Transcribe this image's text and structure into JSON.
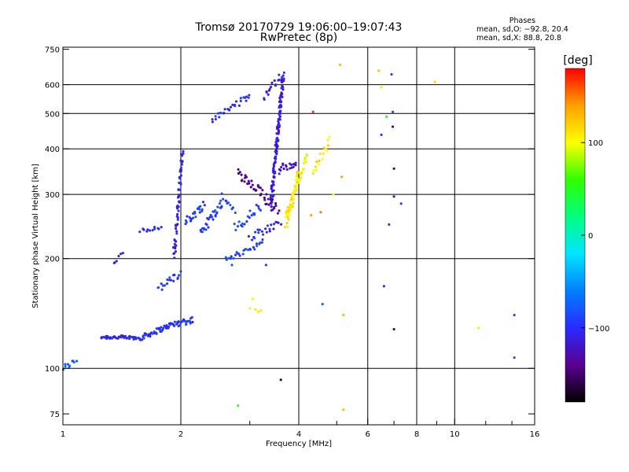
{
  "header": {
    "title_line1": "Tromsø 20170729 19:06:00–19:07:43",
    "title_line2": "RwPretec (8p)"
  },
  "phase_box": {
    "heading": "Phases",
    "line_o": "mean, sd,O: −92.8, 20.4",
    "line_x": "mean, sd,X:  88.8, 20.8"
  },
  "colorbar": {
    "unit_label": "[deg]",
    "ticks": [
      {
        "value": 100,
        "label": "100"
      },
      {
        "value": 0,
        "label": "0"
      },
      {
        "value": -100,
        "label": "−100"
      }
    ],
    "range": [
      -180,
      180
    ],
    "colormap": [
      "#000000",
      "#5a0090",
      "#2a2aff",
      "#0080ff",
      "#00e5ff",
      "#00ff80",
      "#30ff00",
      "#ffff00",
      "#ffa000",
      "#ff0000"
    ]
  },
  "chart_data": {
    "type": "scatter",
    "title": "Tromsø 20170729 19:06:00–19:07:43",
    "subtitle": "RwPretec (8p)",
    "xlabel": "Frequency [MHz]",
    "ylabel": "Stationary phase Virtual Height [km]",
    "x_scale": "log",
    "y_scale": "log",
    "xlim": [
      1,
      16
    ],
    "ylim": [
      70,
      760
    ],
    "x_ticks": [
      {
        "value": 1,
        "label": "1"
      },
      {
        "value": 2,
        "label": "2"
      },
      {
        "value": 4,
        "label": "4"
      },
      {
        "value": 6,
        "label": "6"
      },
      {
        "value": 8,
        "label": "8"
      },
      {
        "value": 10,
        "label": "10"
      },
      {
        "value": 16,
        "label": "16"
      }
    ],
    "x_minor_ticks": [
      3,
      5,
      7,
      9,
      12,
      14
    ],
    "y_ticks": [
      {
        "value": 75,
        "label": "75"
      },
      {
        "value": 100,
        "label": "100"
      },
      {
        "value": 200,
        "label": "200"
      },
      {
        "value": 300,
        "label": "300"
      },
      {
        "value": 400,
        "label": "400"
      },
      {
        "value": 500,
        "label": "500"
      },
      {
        "value": 600,
        "label": "600"
      },
      {
        "value": 750,
        "label": "750"
      }
    ],
    "grid_x": [
      2,
      4,
      6,
      8,
      10
    ],
    "grid_y": [
      100,
      200,
      300,
      400,
      500,
      600
    ],
    "color_value": "phase_deg",
    "tracks": [
      {
        "f0": 1.0,
        "f1": 1.08,
        "h0": 100,
        "h1": 105,
        "n": 10,
        "jitter": 2,
        "phase": -80
      },
      {
        "f0": 1.25,
        "f1": 1.6,
        "h0": 122,
        "h1": 121,
        "n": 45,
        "jitter": 1.5,
        "phase": -105
      },
      {
        "f0": 1.6,
        "f1": 1.9,
        "h0": 122,
        "h1": 132,
        "n": 40,
        "jitter": 2,
        "phase": -100
      },
      {
        "f0": 1.9,
        "f1": 2.15,
        "h0": 132,
        "h1": 136,
        "n": 25,
        "jitter": 3,
        "phase": -98
      },
      {
        "f0": 1.35,
        "f1": 1.42,
        "h0": 194,
        "h1": 206,
        "n": 6,
        "jitter": 3,
        "phase": -100
      },
      {
        "f0": 1.58,
        "f1": 1.78,
        "h0": 239,
        "h1": 244,
        "n": 12,
        "jitter": 3,
        "phase": -100
      },
      {
        "f0": 1.75,
        "f1": 2.0,
        "h0": 165,
        "h1": 182,
        "n": 18,
        "jitter": 5,
        "phase": -95
      },
      {
        "f0": 1.92,
        "f1": 2.02,
        "h0": 200,
        "h1": 400,
        "n": 60,
        "jitter": 8,
        "phase": -108
      },
      {
        "f0": 2.05,
        "f1": 2.3,
        "h0": 250,
        "h1": 282,
        "n": 22,
        "jitter": 8,
        "phase": -95
      },
      {
        "f0": 2.25,
        "f1": 2.55,
        "h0": 236,
        "h1": 285,
        "n": 30,
        "jitter": 8,
        "phase": -88
      },
      {
        "f0": 2.55,
        "f1": 2.75,
        "h0": 295,
        "h1": 272,
        "n": 10,
        "jitter": 8,
        "phase": -92
      },
      {
        "f0": 2.4,
        "f1": 3.0,
        "h0": 480,
        "h1": 560,
        "n": 28,
        "jitter": 10,
        "phase": -100
      },
      {
        "f0": 2.6,
        "f1": 3.25,
        "h0": 198,
        "h1": 222,
        "n": 26,
        "jitter": 4,
        "phase": -90
      },
      {
        "f0": 2.75,
        "f1": 3.2,
        "h0": 240,
        "h1": 280,
        "n": 20,
        "jitter": 10,
        "phase": -85
      },
      {
        "f0": 2.8,
        "f1": 3.55,
        "h0": 340,
        "h1": 275,
        "n": 45,
        "jitter": 12,
        "phase": -140
      },
      {
        "f0": 3.0,
        "f1": 3.6,
        "h0": 230,
        "h1": 250,
        "n": 22,
        "jitter": 6,
        "phase": -102
      },
      {
        "f0": 3.25,
        "f1": 3.65,
        "h0": 560,
        "h1": 640,
        "n": 18,
        "jitter": 15,
        "phase": -110
      },
      {
        "f0": 3.4,
        "f1": 3.65,
        "h0": 280,
        "h1": 640,
        "n": 140,
        "jitter": 18,
        "phase": -112
      },
      {
        "f0": 3.55,
        "f1": 3.95,
        "h0": 350,
        "h1": 365,
        "n": 18,
        "jitter": 10,
        "phase": -120
      },
      {
        "f0": 3.7,
        "f1": 4.0,
        "h0": 250,
        "h1": 340,
        "n": 55,
        "jitter": 15,
        "phase": 110
      },
      {
        "f0": 4.0,
        "f1": 4.2,
        "h0": 320,
        "h1": 390,
        "n": 16,
        "jitter": 12,
        "phase": 100
      },
      {
        "f0": 4.35,
        "f1": 4.8,
        "h0": 350,
        "h1": 420,
        "n": 16,
        "jitter": 12,
        "phase": 112
      }
    ],
    "points": [
      [
        3.05,
        155,
        105
      ],
      [
        3.1,
        145,
        110
      ],
      [
        3.15,
        143,
        112
      ],
      [
        3.0,
        146,
        108
      ],
      [
        3.2,
        144,
        110
      ],
      [
        2.8,
        79,
        60
      ],
      [
        5.2,
        77,
        130
      ],
      [
        5.1,
        680,
        130
      ],
      [
        6.4,
        655,
        125
      ],
      [
        6.5,
        590,
        110
      ],
      [
        6.7,
        490,
        50
      ],
      [
        6.9,
        640,
        -95
      ],
      [
        6.95,
        505,
        -90
      ],
      [
        6.95,
        460,
        -150
      ],
      [
        6.5,
        437,
        -100
      ],
      [
        7.0,
        353,
        -150
      ],
      [
        7.0,
        296,
        -130
      ],
      [
        7.3,
        283,
        -95
      ],
      [
        6.6,
        168,
        -100
      ],
      [
        7.0,
        128,
        -150
      ],
      [
        4.6,
        150,
        -80
      ],
      [
        5.2,
        140,
        130
      ],
      [
        11.5,
        129,
        110
      ],
      [
        14.2,
        140,
        -90
      ],
      [
        14.2,
        107,
        -85
      ],
      [
        3.6,
        93,
        -160
      ],
      [
        8.9,
        610,
        120
      ],
      [
        4.35,
        505,
        170
      ],
      [
        5.15,
        335,
        140
      ],
      [
        4.3,
        263,
        140
      ],
      [
        4.55,
        268,
        150
      ],
      [
        3.3,
        192,
        -100
      ],
      [
        2.7,
        192,
        -80
      ],
      [
        6.8,
        248,
        -100
      ],
      [
        4.9,
        300,
        100
      ]
    ]
  }
}
